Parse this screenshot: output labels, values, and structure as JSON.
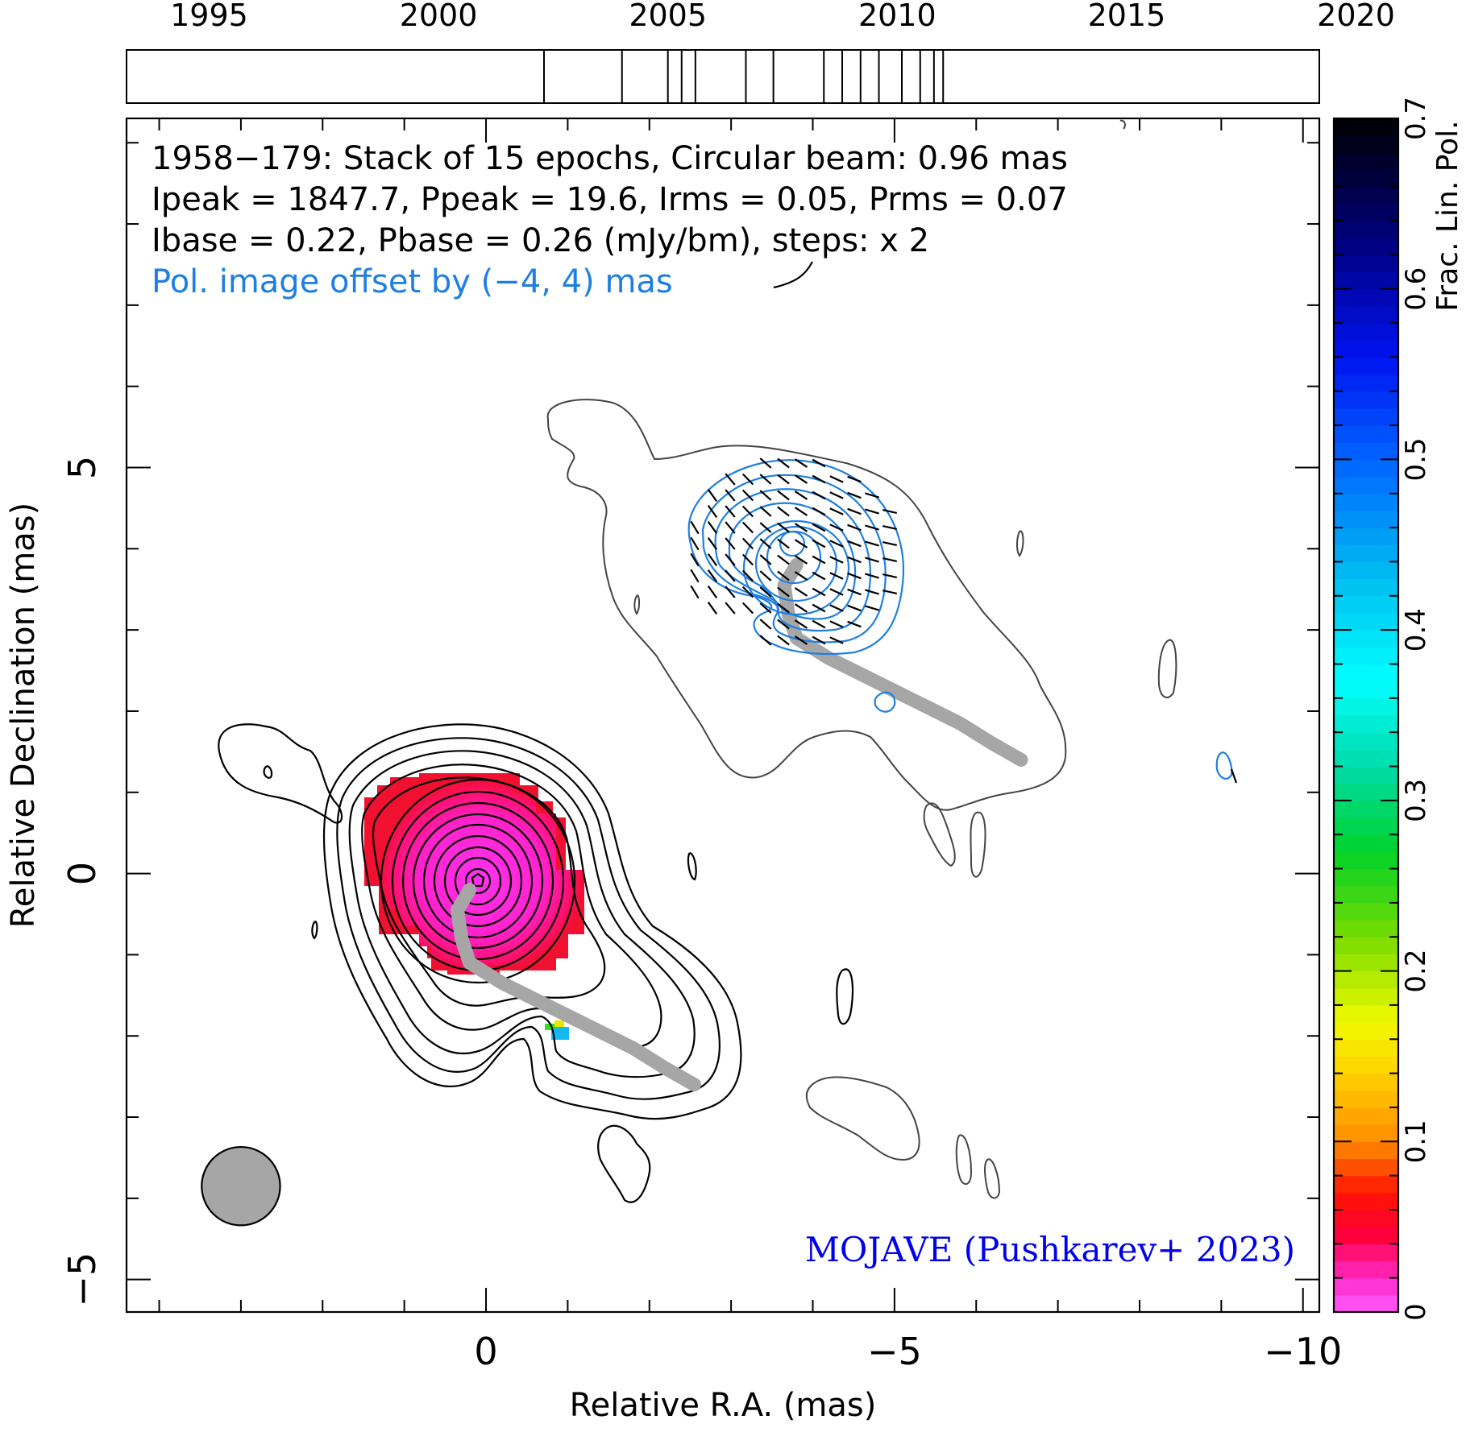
{
  "chart_data": {
    "type": "heatmap",
    "panel_title": "1958−179: Stack of 15 epochs, Circular beam: 0.96 mas",
    "stats_line": "Ipeak = 1847.7, Ppeak = 19.6, Irms = 0.05, Prms = 0.07",
    "base_line": "Ibase = 0.22, Pbase = 0.26 (mJy/bm), steps: x 2",
    "pol_offset_note": "Pol. image offset by (−4, 4) mas",
    "credit": "MOJAVE (Pushkarev+ 2023)",
    "xlabel": "Relative R.A. (mas)",
    "ylabel": "Relative Declination (mas)",
    "colorbar_label": "Frac. Lin. Pol.",
    "x_range": [
      4.4,
      -10.2
    ],
    "y_range": [
      -5.4,
      9.3
    ],
    "x_ticks": [
      0,
      -5,
      -10
    ],
    "x_tick_labels": [
      "0",
      "−5",
      "−10"
    ],
    "y_ticks": [
      5,
      0,
      -5
    ],
    "y_tick_labels": [
      "5",
      "0",
      "−5"
    ],
    "colorbar_range": [
      0,
      0.7
    ],
    "colorbar_ticks": [
      0,
      0.1,
      0.2,
      0.3,
      0.4,
      0.5,
      0.6,
      0.7
    ],
    "colorbar_tick_labels": [
      "0",
      "0.1",
      "0.2",
      "0.3",
      "0.4",
      "0.5",
      "0.6",
      "0.7"
    ],
    "timeline_years": [
      1995,
      2000,
      2005,
      2010,
      2015,
      2020
    ],
    "timeline_range": [
      1993.2,
      2019.2
    ],
    "epochs": [
      2002.3,
      2004.0,
      2005.0,
      2005.3,
      2005.6,
      2006.7,
      2007.3,
      2008.4,
      2008.8,
      2009.2,
      2009.6,
      2010.1,
      2010.5,
      2010.8,
      2011.0
    ],
    "beam_major_mas": 0.96,
    "beam_center": [
      3.0,
      -3.85
    ],
    "peak_position": [
      0,
      0
    ],
    "ridge_line": [
      [
        0.2,
        -0.2
      ],
      [
        0.35,
        -0.45
      ],
      [
        0.3,
        -0.8
      ],
      [
        0.2,
        -1.1
      ],
      [
        -0.2,
        -1.35
      ],
      [
        -0.6,
        -1.55
      ],
      [
        -1.0,
        -1.75
      ],
      [
        -1.4,
        -1.95
      ],
      [
        -1.8,
        -2.15
      ],
      [
        -2.2,
        -2.4
      ],
      [
        -2.55,
        -2.6
      ]
    ],
    "pol_fraction_core": 0.02,
    "pol_fraction_edge": 0.05,
    "pol_knot_fraction": 0.38,
    "contour_color": "#000000",
    "pol_contour_color": "#1f7fe0",
    "ridge_color": "#a6a6a6",
    "credit_color": "#0000ee",
    "note_color": "#1f7fe0"
  }
}
